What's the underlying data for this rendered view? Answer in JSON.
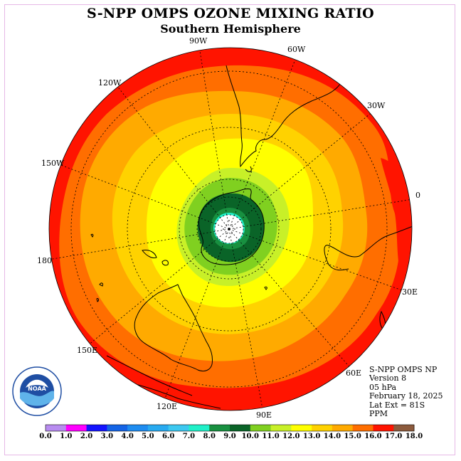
{
  "title": "S-NPP OMPS OZONE MIXING RATIO",
  "subtitle": "Southern Hemisphere",
  "longitude_labels": [
    "90W",
    "60W",
    "30W",
    "0",
    "30E",
    "60E",
    "90E",
    "120E",
    "150E",
    "180",
    "150W",
    "120W"
  ],
  "info": {
    "instrument": "S-NPP OMPS NP",
    "version": "Version 8",
    "pressure": "05 hPa",
    "date": "February 18, 2025",
    "lat_ext": "Lat Ext = 81S",
    "unit": "PPM"
  },
  "colorbar": {
    "labels": [
      "0.0",
      "1.0",
      "2.0",
      "3.0",
      "4.0",
      "5.0",
      "6.0",
      "7.0",
      "8.0",
      "9.0",
      "10.0",
      "11.0",
      "12.0",
      "13.0",
      "14.0",
      "15.0",
      "16.0",
      "17.0",
      "18.0"
    ],
    "colors": [
      "#b88cf0",
      "#d9b3f5",
      "#ff00ff",
      "#1414ff",
      "#1464e6",
      "#1e8cf0",
      "#28aaf0",
      "#3cc8f0",
      "#20f0c8",
      "#189040",
      "#0a6428",
      "#80d020",
      "#c8f028",
      "#ffff00",
      "#ffd200",
      "#ffaa00",
      "#ff6e00",
      "#ff1400",
      "#8c5a3c"
    ]
  },
  "logo": {
    "text": "NOAA",
    "ring_text": "NATIONAL OCEANIC AND ATMOSPHERIC ADMINISTRATION · U.S. DEPARTMENT OF COMMERCE"
  }
}
